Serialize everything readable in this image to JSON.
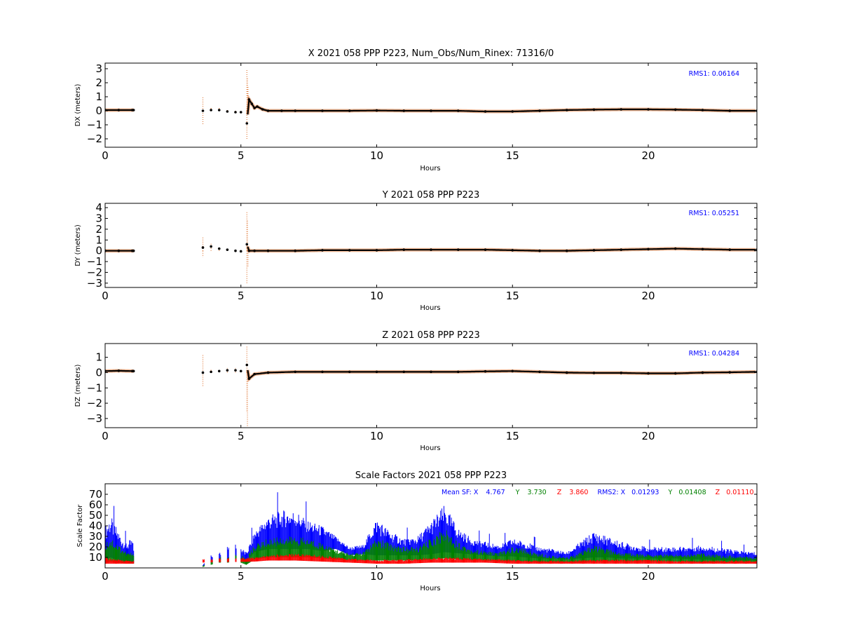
{
  "chart_data": [
    {
      "type": "scatter",
      "title": "X 2021 058 PPP  P223, Num_Obs/Num_Rinex: 71316/0",
      "xlabel": "Hours",
      "ylabel": "DX (meters)",
      "xlim": [
        0,
        24
      ],
      "ylim": [
        -2.6,
        3.4
      ],
      "xticks": [
        0,
        5,
        10,
        15,
        20
      ],
      "yticks": [
        -2,
        -1,
        0,
        1,
        2,
        3
      ],
      "annotation": "RMS1:  0.06164",
      "series": [
        {
          "color": "#e07a3a",
          "x": [
            3.6,
            3.6,
            3.9,
            4.2,
            4.5,
            4.8,
            5.22,
            5.22,
            5.24,
            5.26
          ],
          "y": [
            1.0,
            -1.0,
            0.3,
            0.2,
            0.1,
            -0.1,
            3.0,
            -2.0,
            2.4,
            1.8
          ]
        },
        {
          "color": "#000000",
          "x": [
            0.0,
            0.5,
            1.0,
            1.05,
            3.6,
            3.9,
            4.2,
            4.5,
            4.8,
            5.0,
            5.22,
            5.3,
            5.4,
            5.5,
            5.6,
            5.8,
            6.0,
            6.5,
            7.0,
            8.0,
            9.0,
            10.0,
            11.0,
            12.0,
            13.0,
            14.0,
            15.0,
            16.0,
            17.0,
            18.0,
            19.0,
            20.0,
            21.0,
            22.0,
            23.0,
            24.0
          ],
          "y": [
            0.05,
            0.05,
            0.05,
            0.05,
            0.0,
            0.05,
            0.05,
            -0.05,
            -0.1,
            -0.1,
            -0.9,
            0.8,
            0.5,
            0.2,
            0.3,
            0.1,
            0.0,
            0.0,
            0.0,
            0.0,
            0.0,
            0.02,
            0.0,
            0.0,
            0.0,
            -0.05,
            -0.05,
            0.0,
            0.05,
            0.08,
            0.1,
            0.1,
            0.08,
            0.05,
            0.0,
            0.0
          ],
          "gaps": [
            [
              1.05,
              3.6
            ],
            [
              3.6,
              3.9
            ],
            [
              3.9,
              4.2
            ],
            [
              4.2,
              4.5
            ],
            [
              4.5,
              4.8
            ],
            [
              4.8,
              5.0
            ],
            [
              5.0,
              5.22
            ]
          ]
        }
      ]
    },
    {
      "type": "scatter",
      "title": "Y 2021 058 PPP  P223",
      "xlabel": "Hours",
      "ylabel": "DY (meters)",
      "xlim": [
        0,
        24
      ],
      "ylim": [
        -3.4,
        4.4
      ],
      "xticks": [
        0,
        5,
        10,
        15,
        20
      ],
      "yticks": [
        -3,
        -2,
        -1,
        0,
        1,
        2,
        3,
        4
      ],
      "annotation": "RMS1:  0.05251",
      "series": [
        {
          "color": "#e07a3a",
          "x": [
            3.6,
            3.6,
            3.9,
            4.2,
            5.22,
            5.22,
            5.24,
            5.26
          ],
          "y": [
            1.3,
            -0.6,
            0.7,
            0.2,
            3.6,
            -3.0,
            2.8,
            -1.5
          ]
        },
        {
          "color": "#000000",
          "x": [
            0.0,
            0.5,
            1.0,
            1.05,
            3.6,
            3.9,
            4.2,
            4.5,
            4.8,
            5.0,
            5.22,
            5.3,
            5.5,
            6.0,
            7.0,
            8.0,
            9.0,
            10.0,
            11.0,
            12.0,
            13.0,
            14.0,
            15.0,
            16.0,
            17.0,
            18.0,
            19.0,
            20.0,
            21.0,
            22.0,
            23.0,
            24.0
          ],
          "y": [
            0.0,
            0.0,
            0.0,
            0.0,
            0.3,
            0.4,
            0.2,
            0.1,
            0.0,
            -0.05,
            0.6,
            0.0,
            0.0,
            0.0,
            0.0,
            0.05,
            0.05,
            0.05,
            0.1,
            0.1,
            0.1,
            0.1,
            0.05,
            0.0,
            0.0,
            0.05,
            0.1,
            0.15,
            0.2,
            0.15,
            0.1,
            0.1
          ],
          "gaps": [
            [
              1.05,
              3.6
            ],
            [
              3.6,
              3.9
            ],
            [
              3.9,
              4.2
            ],
            [
              4.2,
              4.5
            ],
            [
              4.5,
              4.8
            ],
            [
              4.8,
              5.0
            ],
            [
              5.0,
              5.22
            ]
          ]
        }
      ]
    },
    {
      "type": "scatter",
      "title": "Z 2021 058 PPP  P223",
      "xlabel": "Hours",
      "ylabel": "DZ (meters)",
      "xlim": [
        0,
        24
      ],
      "ylim": [
        -3.6,
        1.9
      ],
      "xticks": [
        0,
        5,
        10,
        15,
        20
      ],
      "yticks": [
        -3,
        -2,
        -1,
        0,
        1
      ],
      "annotation": "RMS1:  0.04284",
      "series": [
        {
          "color": "#e07a3a",
          "x": [
            3.6,
            3.6,
            3.9,
            4.5,
            4.8,
            5.22,
            5.22,
            5.24
          ],
          "y": [
            1.2,
            -0.9,
            0.2,
            0.3,
            0.3,
            1.7,
            -2.6,
            -3.5
          ]
        },
        {
          "color": "#000000",
          "x": [
            0.0,
            0.5,
            1.0,
            1.05,
            3.6,
            3.9,
            4.2,
            4.5,
            4.8,
            5.0,
            5.22,
            5.3,
            5.5,
            6.0,
            7.0,
            8.0,
            9.0,
            10.0,
            11.0,
            12.0,
            13.0,
            14.0,
            15.0,
            16.0,
            17.0,
            18.0,
            19.0,
            20.0,
            21.0,
            22.0,
            23.0,
            24.0
          ],
          "y": [
            0.1,
            0.12,
            0.1,
            0.1,
            0.0,
            0.05,
            0.1,
            0.15,
            0.15,
            0.1,
            0.5,
            -0.4,
            -0.1,
            0.0,
            0.05,
            0.05,
            0.05,
            0.05,
            0.05,
            0.05,
            0.05,
            0.08,
            0.1,
            0.05,
            0.0,
            -0.02,
            -0.02,
            -0.05,
            -0.05,
            0.0,
            0.02,
            0.05
          ],
          "gaps": [
            [
              1.05,
              3.6
            ],
            [
              3.6,
              3.9
            ],
            [
              3.9,
              4.2
            ],
            [
              4.2,
              4.5
            ],
            [
              4.5,
              4.8
            ],
            [
              4.8,
              5.0
            ],
            [
              5.0,
              5.22
            ]
          ]
        }
      ]
    },
    {
      "type": "area",
      "title": "Scale Factors 2021 058 PPP  P223",
      "xlabel": "Hours",
      "ylabel": "Scale Factor",
      "xlim": [
        0,
        24
      ],
      "ylim": [
        0,
        80
      ],
      "xticks": [
        0,
        5,
        10,
        15,
        20
      ],
      "yticks": [
        10,
        20,
        30,
        40,
        50,
        60,
        70
      ],
      "annotation": {
        "mean_sf_label": "Mean SF: X",
        "mean_sf_x": "4.767",
        "y_label": "Y",
        "mean_sf_y": "3.730",
        "z_label": "Z",
        "mean_sf_z": "3.860",
        "rms2_label": "RMS2: X",
        "rms2_x": "0.01293",
        "rms2_y_label": "Y",
        "rms2_y": "0.01408",
        "rms2_z_label": "Z",
        "rms2_z": "0.01110"
      },
      "series": [
        {
          "color": "#0000ff",
          "x": [
            0.0,
            0.2,
            0.4,
            0.6,
            0.8,
            1.0,
            1.05,
            3.6,
            3.9,
            4.2,
            4.5,
            4.8,
            5.0,
            5.2,
            5.5,
            6.0,
            6.5,
            7.0,
            7.5,
            8.0,
            8.5,
            9.0,
            9.5,
            10.0,
            10.5,
            11.0,
            11.5,
            12.0,
            12.5,
            13.0,
            13.5,
            14.0,
            14.5,
            15.0,
            15.5,
            16.0,
            16.5,
            17.0,
            17.5,
            18.0,
            18.5,
            19.0,
            19.5,
            20.0,
            21.0,
            22.0,
            23.0,
            24.0
          ],
          "low": [
            8,
            10,
            8,
            7,
            6,
            5,
            5,
            2,
            5,
            8,
            8,
            10,
            8,
            5,
            15,
            18,
            18,
            18,
            18,
            16,
            18,
            12,
            13,
            12,
            12,
            12,
            12,
            13,
            15,
            14,
            13,
            12,
            11,
            11,
            10,
            9,
            9,
            8,
            9,
            10,
            10,
            9,
            9,
            9,
            9,
            8,
            7,
            7
          ],
          "high": [
            40,
            50,
            40,
            30,
            25,
            28,
            20,
            3,
            12,
            15,
            20,
            25,
            20,
            15,
            35,
            50,
            55,
            55,
            45,
            40,
            30,
            20,
            22,
            48,
            35,
            28,
            30,
            45,
            60,
            38,
            28,
            25,
            22,
            28,
            25,
            20,
            18,
            15,
            25,
            35,
            30,
            25,
            22,
            20,
            20,
            22,
            18,
            15
          ]
        },
        {
          "color": "#008000",
          "x": [
            0.0,
            0.2,
            0.4,
            0.6,
            0.8,
            1.0,
            1.05,
            3.6,
            3.9,
            4.2,
            4.5,
            4.8,
            5.0,
            5.2,
            5.5,
            6.0,
            6.5,
            7.0,
            7.5,
            8.0,
            8.5,
            9.0,
            9.5,
            10.0,
            10.5,
            11.0,
            11.5,
            12.0,
            12.5,
            13.0,
            13.5,
            14.0,
            14.5,
            15.0,
            15.5,
            16.0,
            16.5,
            17.0,
            17.5,
            18.0,
            18.5,
            19.0,
            19.5,
            20.0,
            21.0,
            22.0,
            23.0,
            24.0
          ],
          "low": [
            5,
            6,
            5,
            5,
            4,
            4,
            4,
            1,
            3,
            5,
            5,
            6,
            5,
            3,
            8,
            10,
            10,
            10,
            10,
            9,
            8,
            7,
            7,
            7,
            7,
            7,
            7,
            8,
            9,
            8,
            7,
            7,
            6,
            6,
            6,
            5,
            5,
            5,
            5,
            6,
            6,
            6,
            6,
            6,
            6,
            5,
            5,
            5
          ],
          "high": [
            25,
            30,
            25,
            20,
            15,
            15,
            12,
            2,
            8,
            10,
            12,
            15,
            12,
            10,
            22,
            28,
            30,
            30,
            28,
            24,
            18,
            14,
            15,
            28,
            24,
            20,
            20,
            28,
            38,
            25,
            18,
            16,
            15,
            20,
            18,
            14,
            12,
            10,
            15,
            22,
            18,
            15,
            14,
            13,
            13,
            14,
            12,
            10
          ]
        },
        {
          "color": "#ff0000",
          "x": [
            0.0,
            0.5,
            1.0,
            1.05,
            5.5,
            6.0,
            7.0,
            8.0,
            9.0,
            10.0,
            11.0,
            12.0,
            13.0,
            14.0,
            15.0,
            16.0,
            17.0,
            18.0,
            19.0,
            20.0,
            21.0,
            22.0,
            23.0,
            24.0
          ],
          "low": [
            4,
            4,
            4,
            4,
            6,
            7,
            7,
            6,
            5,
            4,
            4,
            5,
            5,
            5,
            4,
            4,
            4,
            4,
            4,
            4,
            4,
            4,
            4,
            4
          ],
          "high": [
            10,
            8,
            7,
            7,
            10,
            12,
            14,
            12,
            9,
            8,
            8,
            10,
            10,
            9,
            8,
            7,
            7,
            8,
            8,
            8,
            7,
            7,
            7,
            7
          ]
        }
      ]
    }
  ]
}
